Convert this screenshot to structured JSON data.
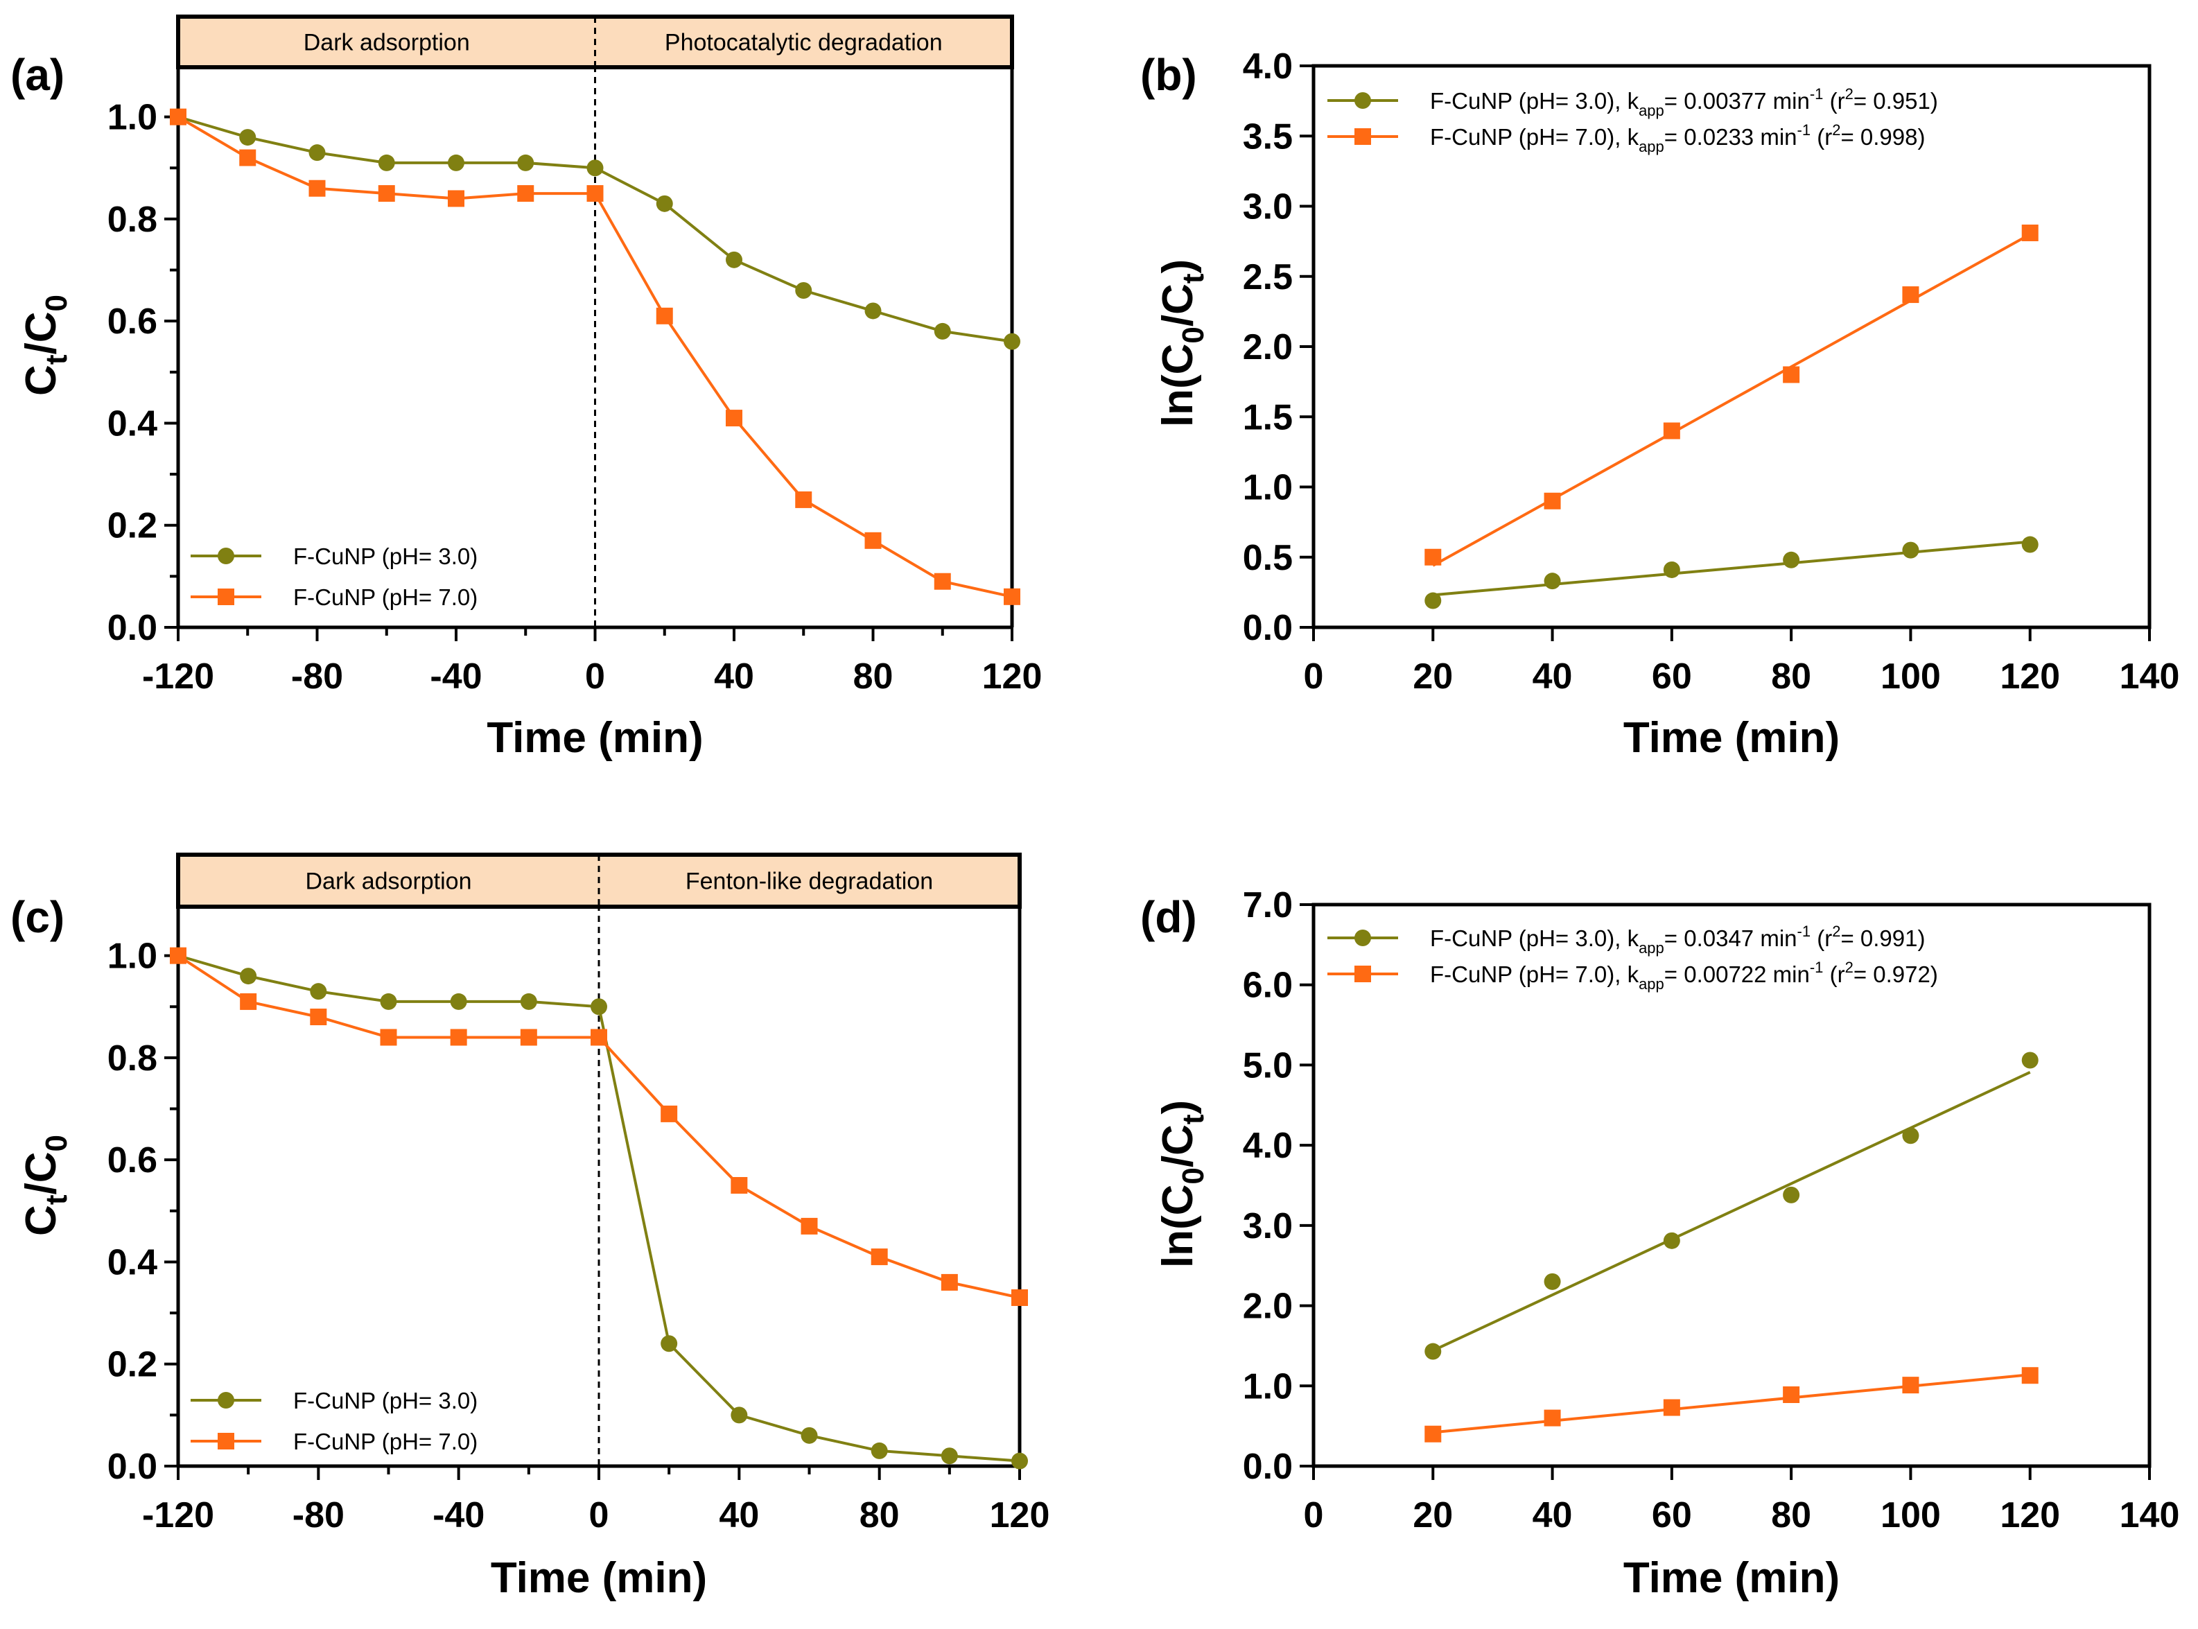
{
  "colors": {
    "ph3": "#808012",
    "ph7": "#ff6a13",
    "band": "#fcdcbc",
    "axis": "#000000"
  },
  "chart_data": [
    {
      "panel": "(a)",
      "type": "line",
      "xlabel": "Time (min)",
      "ylabel": {
        "base": "C",
        "sub1": "t",
        "slash": "/C",
        "sub2": "0"
      },
      "xlim": [
        -120,
        120
      ],
      "ylim": [
        0,
        1.1
      ],
      "xticks": [
        -120,
        -80,
        -40,
        0,
        40,
        80,
        120
      ],
      "xtick_labels": [
        "-120",
        "-80",
        "-40",
        "0",
        "40",
        "80",
        "120"
      ],
      "yticks": [
        0,
        0.2,
        0.4,
        0.6,
        0.8,
        1.0
      ],
      "ytick_labels": [
        "0.0",
        "0.2",
        "0.4",
        "0.6",
        "0.8",
        "1.0"
      ],
      "yminor": [
        0.1,
        0.3,
        0.5,
        0.7,
        0.9
      ],
      "xminor": [
        -100,
        -60,
        -20,
        20,
        60,
        100
      ],
      "band": {
        "left_label": "Dark adsorption",
        "right_label": "Photocatalytic degradation",
        "split_x": 0
      },
      "legend_position": "bottom-left",
      "series": [
        {
          "name": "F-CuNP (pH= 3.0)",
          "marker": "circle",
          "color_key": "ph3",
          "x": [
            -120,
            -100,
            -80,
            -60,
            -40,
            -20,
            0,
            20,
            40,
            60,
            80,
            100,
            120
          ],
          "y": [
            1.0,
            0.96,
            0.93,
            0.91,
            0.91,
            0.91,
            0.9,
            0.83,
            0.72,
            0.66,
            0.62,
            0.58,
            0.56
          ]
        },
        {
          "name": "F-CuNP (pH= 7.0)",
          "marker": "square",
          "color_key": "ph7",
          "x": [
            -120,
            -100,
            -80,
            -60,
            -40,
            -20,
            0,
            20,
            40,
            60,
            80,
            100,
            120
          ],
          "y": [
            1.0,
            0.92,
            0.86,
            0.85,
            0.84,
            0.85,
            0.85,
            0.61,
            0.41,
            0.25,
            0.17,
            0.09,
            0.06
          ]
        }
      ]
    },
    {
      "panel": "(b)",
      "type": "scatter",
      "xlabel": "Time (min)",
      "ylabel": {
        "pre": "ln(C",
        "sub1": "0",
        "mid": "/C",
        "sub2": "t",
        "post": ")"
      },
      "xlim": [
        0,
        140
      ],
      "ylim": [
        0,
        4.0
      ],
      "xticks": [
        0,
        20,
        40,
        60,
        80,
        100,
        120,
        140
      ],
      "xtick_labels": [
        "0",
        "20",
        "40",
        "60",
        "80",
        "100",
        "120",
        "140"
      ],
      "yticks": [
        0,
        0.5,
        1.0,
        1.5,
        2.0,
        2.5,
        3.0,
        3.5,
        4.0
      ],
      "ytick_labels": [
        "0.0",
        "0.5",
        "1.0",
        "1.5",
        "2.0",
        "2.5",
        "3.0",
        "3.5",
        "4.0"
      ],
      "legend_position": "top-left",
      "series": [
        {
          "name": "F-CuNP (pH= 3.0), ",
          "k_prefix": "k",
          "k_sub": "app",
          "k_value": "= 0.00377 min",
          "k_sup": "-1",
          "r_prefix": " (r",
          "r_sup": "2",
          "r_value": "= 0.951)",
          "marker": "circle",
          "color_key": "ph3",
          "x": [
            20,
            40,
            60,
            80,
            100,
            120
          ],
          "y": [
            0.19,
            0.33,
            0.41,
            0.48,
            0.55,
            0.59
          ],
          "fit": {
            "x": [
              20,
              120
            ],
            "y": [
              0.23,
              0.61
            ]
          }
        },
        {
          "name": "F-CuNP (pH= 7.0), ",
          "k_prefix": "k",
          "k_sub": "app",
          "k_value": "= 0.0233 min",
          "k_sup": "-1",
          "r_prefix": " (r",
          "r_sup": "2",
          "r_value": "= 0.998)",
          "marker": "square",
          "color_key": "ph7",
          "x": [
            20,
            40,
            60,
            80,
            100,
            120
          ],
          "y": [
            0.5,
            0.9,
            1.4,
            1.8,
            2.37,
            2.81
          ],
          "fit": {
            "x": [
              20,
              120
            ],
            "y": [
              0.44,
              2.8
            ]
          }
        }
      ]
    },
    {
      "panel": "(c)",
      "type": "line",
      "xlabel": "Time (min)",
      "ylabel": {
        "base": "C",
        "sub1": "t",
        "slash": "/C",
        "sub2": "0"
      },
      "xlim": [
        -120,
        120
      ],
      "ylim": [
        0,
        1.1
      ],
      "xticks": [
        -120,
        -80,
        -40,
        0,
        40,
        80,
        120
      ],
      "xtick_labels": [
        "-120",
        "-80",
        "-40",
        "0",
        "40",
        "80",
        "120"
      ],
      "yticks": [
        0,
        0.2,
        0.4,
        0.6,
        0.8,
        1.0
      ],
      "ytick_labels": [
        "0.0",
        "0.2",
        "0.4",
        "0.6",
        "0.8",
        "1.0"
      ],
      "yminor": [
        0.1,
        0.3,
        0.5,
        0.7,
        0.9
      ],
      "xminor": [
        -100,
        -60,
        -20,
        20,
        60,
        100
      ],
      "band": {
        "left_label": "Dark adsorption",
        "right_label": "Fenton-like degradation",
        "split_x": 0
      },
      "legend_position": "bottom-left",
      "series": [
        {
          "name": "F-CuNP (pH= 3.0)",
          "marker": "circle",
          "color_key": "ph3",
          "x": [
            -120,
            -100,
            -80,
            -60,
            -40,
            -20,
            0,
            20,
            40,
            60,
            80,
            100,
            120
          ],
          "y": [
            1.0,
            0.96,
            0.93,
            0.91,
            0.91,
            0.91,
            0.9,
            0.24,
            0.1,
            0.06,
            0.03,
            0.02,
            0.01
          ]
        },
        {
          "name": "F-CuNP (pH= 7.0)",
          "marker": "square",
          "color_key": "ph7",
          "x": [
            -120,
            -100,
            -80,
            -60,
            -40,
            -20,
            0,
            20,
            40,
            60,
            80,
            100,
            120
          ],
          "y": [
            1.0,
            0.91,
            0.88,
            0.84,
            0.84,
            0.84,
            0.84,
            0.69,
            0.55,
            0.47,
            0.41,
            0.36,
            0.33
          ]
        }
      ]
    },
    {
      "panel": "(d)",
      "type": "scatter",
      "xlabel": "Time (min)",
      "ylabel": {
        "pre": "ln(C",
        "sub1": "0",
        "mid": "/C",
        "sub2": "t",
        "post": ")"
      },
      "xlim": [
        0,
        140
      ],
      "ylim": [
        0,
        7.0
      ],
      "xticks": [
        0,
        20,
        40,
        60,
        80,
        100,
        120,
        140
      ],
      "xtick_labels": [
        "0",
        "20",
        "40",
        "60",
        "80",
        "100",
        "120",
        "140"
      ],
      "yticks": [
        0,
        1,
        2,
        3,
        4,
        5,
        6,
        7
      ],
      "ytick_labels": [
        "0.0",
        "1.0",
        "2.0",
        "3.0",
        "4.0",
        "5.0",
        "6.0",
        "7.0"
      ],
      "legend_position": "top-left",
      "series": [
        {
          "name": "F-CuNP (pH= 3.0), ",
          "k_prefix": "k",
          "k_sub": "app",
          "k_value": "= 0.0347 min",
          "k_sup": "-1",
          "r_prefix": " (r",
          "r_sup": "2",
          "r_value": "= 0.991)",
          "marker": "circle",
          "color_key": "ph3",
          "x": [
            20,
            40,
            60,
            80,
            100,
            120
          ],
          "y": [
            1.43,
            2.3,
            2.81,
            3.38,
            4.12,
            5.06
          ],
          "fit": {
            "x": [
              20,
              120
            ],
            "y": [
              1.44,
              4.91
            ]
          }
        },
        {
          "name": "F-CuNP (pH= 7.0), ",
          "k_prefix": "k",
          "k_sub": "app",
          "k_value": "= 0.00722 min",
          "k_sup": "-1",
          "r_prefix": " (r",
          "r_sup": "2",
          "r_value": "= 0.972)",
          "marker": "square",
          "color_key": "ph7",
          "x": [
            20,
            40,
            60,
            80,
            100,
            120
          ],
          "y": [
            0.4,
            0.6,
            0.73,
            0.89,
            1.01,
            1.13
          ],
          "fit": {
            "x": [
              20,
              120
            ],
            "y": [
              0.42,
              1.14
            ]
          }
        }
      ]
    }
  ]
}
